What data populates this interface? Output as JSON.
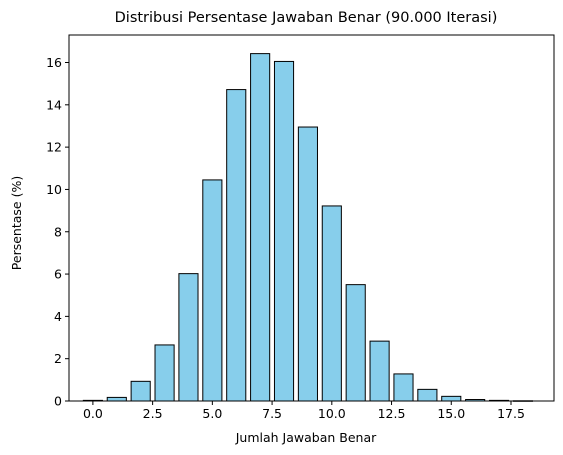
{
  "chart_data": {
    "type": "bar",
    "title": "Distribusi Persentase Jawaban Benar (90.000 Iterasi)",
    "xlabel": "Jumlah Jawaban Benar",
    "ylabel": "Persentase (%)",
    "x": [
      0,
      1,
      2,
      3,
      4,
      5,
      6,
      7,
      8,
      9,
      10,
      11,
      12,
      13,
      14,
      15,
      16,
      17,
      18
    ],
    "values": [
      0.03,
      0.17,
      0.93,
      2.65,
      6.02,
      10.45,
      14.72,
      16.42,
      16.05,
      12.95,
      9.22,
      5.5,
      2.83,
      1.28,
      0.55,
      0.22,
      0.07,
      0.03,
      0.01
    ],
    "xlim": [
      -1.0,
      19.3
    ],
    "ylim": [
      0,
      17.3
    ],
    "xticks": [
      0.0,
      2.5,
      5.0,
      7.5,
      10.0,
      12.5,
      15.0,
      17.5
    ],
    "xtick_labels": [
      "0.0",
      "2.5",
      "5.0",
      "7.5",
      "10.0",
      "12.5",
      "15.0",
      "17.5"
    ],
    "yticks": [
      0,
      2,
      4,
      6,
      8,
      10,
      12,
      14,
      16
    ],
    "ytick_labels": [
      "0",
      "2",
      "4",
      "6",
      "8",
      "10",
      "12",
      "14",
      "16"
    ],
    "bar_color": "#87ceeb",
    "edge_color": "#000000",
    "grid": false,
    "legend": "none"
  }
}
